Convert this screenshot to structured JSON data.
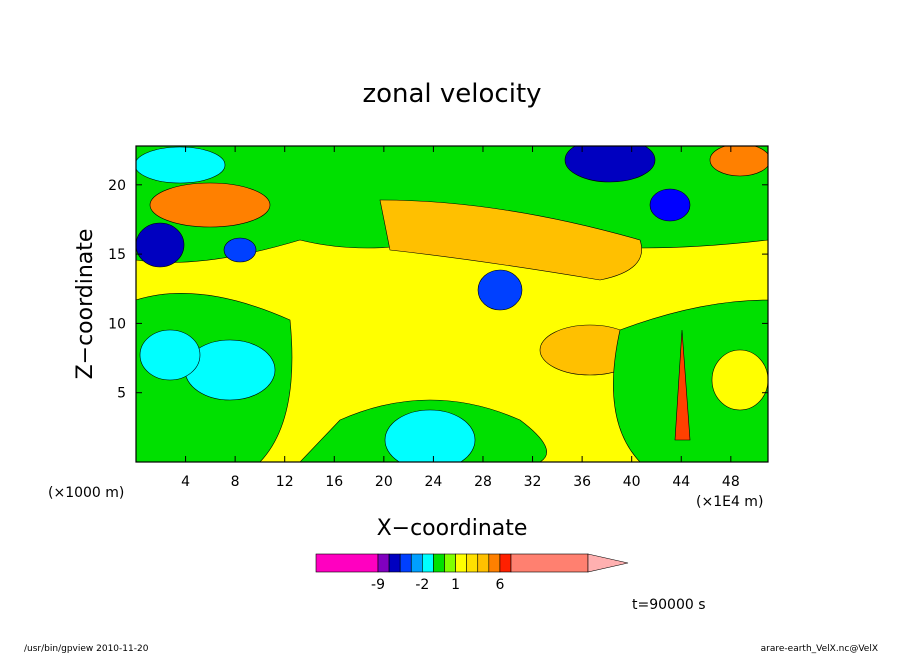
{
  "chart_data": {
    "type": "contour",
    "title": "zonal velocity",
    "x_label": "X−coordinate",
    "y_label": "Z−coordinate",
    "x_unit_left": "(×1000 m)",
    "x_unit": "(×1E4 m)",
    "time_label": "t=90000 s",
    "footer_left": "/usr/bin/gpview  2010-11-20",
    "footer_right": "arare-earth_VelX.nc@VelX",
    "xlim": [
      0,
      51
    ],
    "xticks": [
      4,
      8,
      12,
      16,
      20,
      24,
      28,
      32,
      36,
      40,
      44,
      48
    ],
    "ylim": [
      0,
      22.8
    ],
    "yticks": [
      5,
      10,
      15,
      20
    ],
    "colorbar": {
      "levels": [
        -9,
        -6,
        -4,
        -3,
        -2,
        -1,
        0,
        1,
        2,
        3,
        4,
        6,
        9
      ],
      "colors": [
        "#ff00c0",
        "#8000c0",
        "#0000c0",
        "#0040ff",
        "#00a0ff",
        "#00ffff",
        "#00e000",
        "#80ff00",
        "#ffff00",
        "#ffe000",
        "#ffc000",
        "#ff8000",
        "#ff2000",
        "#ff8070"
      ],
      "extend_color": "#ffb0b0",
      "ticks": [
        -9,
        -2,
        1,
        6
      ]
    }
  }
}
